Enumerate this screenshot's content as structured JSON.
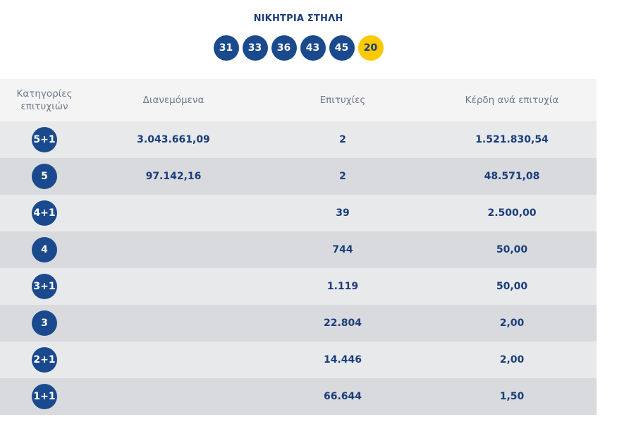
{
  "title": "ΝΙΚΗΤΡΙΑ ΣΤΗΛΗ",
  "numbers": [
    "31",
    "33",
    "36",
    "43",
    "45"
  ],
  "bonus": "20",
  "headers": {
    "category": "Κατηγορίες επιτυχιών",
    "distributed": "Διανεμόμενα",
    "winners": "Επιτυχίες",
    "prize": "Κέρδη ανά επιτυχία"
  },
  "rows": [
    {
      "category": "5+1",
      "distributed": "3.043.661,09",
      "winners": "2",
      "prize": "1.521.830,54"
    },
    {
      "category": "5",
      "distributed": "97.142,16",
      "winners": "2",
      "prize": "48.571,08"
    },
    {
      "category": "4+1",
      "distributed": "",
      "winners": "39",
      "prize": "2.500,00"
    },
    {
      "category": "4",
      "distributed": "",
      "winners": "744",
      "prize": "50,00"
    },
    {
      "category": "3+1",
      "distributed": "",
      "winners": "1.119",
      "prize": "50,00"
    },
    {
      "category": "3",
      "distributed": "",
      "winners": "22.804",
      "prize": "2,00"
    },
    {
      "category": "2+1",
      "distributed": "",
      "winners": "14.446",
      "prize": "2,00"
    },
    {
      "category": "1+1",
      "distributed": "",
      "winners": "66.644",
      "prize": "1,50"
    }
  ],
  "colors": {
    "ball": "#1a4a8d",
    "bonus_ball": "#fcc800",
    "row_light": "#e8e9eb",
    "row_dark": "#d9dadd"
  }
}
